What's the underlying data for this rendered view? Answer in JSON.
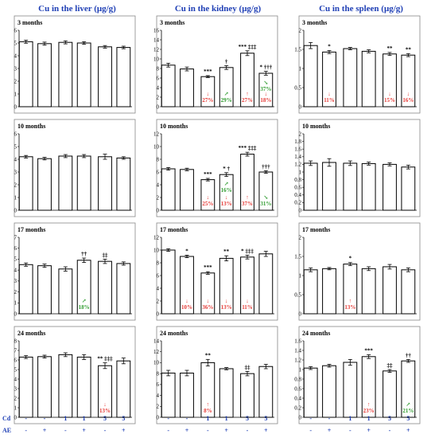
{
  "colors": {
    "title": "#1f3fb5",
    "decrease": "#e53935",
    "increase": "#2e9b2e",
    "sign_row": "#1f3fb5",
    "bar_fill": "#ffffff",
    "bar_stroke": "#000000"
  },
  "x_rows": {
    "cd_label": "Cd",
    "ae_label": "AE",
    "cd_values": [
      "-",
      "-",
      "1",
      "1",
      "5",
      "5"
    ],
    "ae_values": [
      "-",
      "+",
      "-",
      "+",
      "-",
      "+"
    ]
  },
  "columns": [
    {
      "title": "Cu in the liver (μg/g)"
    },
    {
      "title": "Cu in the kidney (μg/g)"
    },
    {
      "title": "Cu in the spleen (μg/g)"
    }
  ],
  "chart_data": [
    {
      "type": "bar",
      "organ": "liver",
      "panel_label": "3 months",
      "ylim": [
        0,
        6
      ],
      "ticks": [
        "0",
        "1",
        "2",
        "3",
        "4",
        "5",
        "6"
      ],
      "values": [
        5.1,
        4.95,
        5.05,
        5.0,
        4.7,
        4.65
      ],
      "errors": [
        0.12,
        0.12,
        0.12,
        0.1,
        0.1,
        0.1
      ],
      "sig_labels": [
        "",
        "",
        "",
        "",
        "",
        ""
      ],
      "arrows": [
        "",
        "",
        "",
        "",
        "",
        ""
      ]
    },
    {
      "type": "bar",
      "organ": "kidney",
      "panel_label": "3 months",
      "ylim": [
        0,
        16
      ],
      "ticks": [
        "0",
        "2",
        "4",
        "6",
        "8",
        "10",
        "12",
        "14",
        "16"
      ],
      "values": [
        8.7,
        7.9,
        6.3,
        8.2,
        11.2,
        7.0
      ],
      "errors": [
        0.4,
        0.4,
        0.2,
        0.4,
        0.5,
        0.4
      ],
      "sig_labels": [
        "",
        "",
        "***",
        "†",
        "*** ‡‡‡",
        "* †††"
      ],
      "arrows": [
        "",
        "",
        "↓ 27%",
        "↗ 29%",
        "↑ 27%",
        "↘ 37%|↓ 18%"
      ]
    },
    {
      "type": "bar",
      "organ": "spleen",
      "panel_label": "3 months",
      "ylim": [
        0,
        2
      ],
      "ticks": [
        "0",
        "0.5",
        "1",
        "1.5",
        "2"
      ],
      "values": [
        1.6,
        1.43,
        1.52,
        1.45,
        1.38,
        1.35
      ],
      "errors": [
        0.08,
        0.04,
        0.03,
        0.04,
        0.04,
        0.04
      ],
      "sig_labels": [
        "",
        "*",
        "",
        "",
        "**",
        "**"
      ],
      "arrows": [
        "",
        "↓ 11%",
        "",
        "",
        "↓ 15%",
        "↓ 16%"
      ]
    },
    {
      "type": "bar",
      "organ": "liver",
      "panel_label": "10 months",
      "ylim": [
        0,
        6
      ],
      "ticks": [
        "0",
        "1",
        "2",
        "3",
        "4",
        "5",
        "6"
      ],
      "values": [
        4.2,
        4.05,
        4.25,
        4.25,
        4.2,
        4.1
      ],
      "errors": [
        0.1,
        0.1,
        0.12,
        0.12,
        0.2,
        0.1
      ],
      "sig_labels": [
        "",
        "",
        "",
        "",
        "",
        ""
      ],
      "arrows": [
        "",
        "",
        "",
        "",
        "",
        ""
      ]
    },
    {
      "type": "bar",
      "organ": "kidney",
      "panel_label": "10 months",
      "ylim": [
        0,
        12
      ],
      "ticks": [
        "0",
        "2",
        "4",
        "6",
        "8",
        "10",
        "12"
      ],
      "values": [
        6.5,
        6.4,
        4.8,
        5.6,
        8.8,
        6.0
      ],
      "errors": [
        0.2,
        0.2,
        0.2,
        0.3,
        0.3,
        0.2
      ],
      "sig_labels": [
        "",
        "",
        "***",
        "* †",
        "*** ‡‡‡",
        "†††"
      ],
      "arrows": [
        "",
        "",
        "↓ 25%",
        "↗ 16%|↓ 13%",
        "↑ 37%",
        "↘ 31%"
      ]
    },
    {
      "type": "bar",
      "organ": "spleen",
      "panel_label": "10 months",
      "ylim": [
        0,
        2
      ],
      "ticks": [
        "0",
        "0.2",
        "0.4",
        "0.6",
        "0.8",
        "1",
        "1.2",
        "1.4",
        "1.6",
        "1.8",
        "2"
      ],
      "values": [
        1.23,
        1.25,
        1.23,
        1.22,
        1.2,
        1.13
      ],
      "errors": [
        0.06,
        0.1,
        0.06,
        0.04,
        0.04,
        0.05
      ],
      "sig_labels": [
        "",
        "",
        "",
        "",
        "",
        ""
      ],
      "arrows": [
        "",
        "",
        "",
        "",
        "",
        ""
      ]
    },
    {
      "type": "bar",
      "organ": "liver",
      "panel_label": "17 months",
      "ylim": [
        0,
        7
      ],
      "ticks": [
        "0",
        "1",
        "2",
        "3",
        "4",
        "5",
        "6",
        "7"
      ],
      "values": [
        4.5,
        4.4,
        4.1,
        4.9,
        4.8,
        4.6
      ],
      "errors": [
        0.15,
        0.15,
        0.2,
        0.2,
        0.2,
        0.15
      ],
      "sig_labels": [
        "",
        "",
        "",
        "††",
        "‡‡",
        ""
      ],
      "arrows": [
        "",
        "",
        "",
        "↗ 18%",
        "",
        ""
      ]
    },
    {
      "type": "bar",
      "organ": "kidney",
      "panel_label": "17 months",
      "ylim": [
        0,
        12
      ],
      "ticks": [
        "0",
        "2",
        "4",
        "6",
        "8",
        "10",
        "12"
      ],
      "values": [
        10.0,
        9.0,
        6.4,
        8.7,
        8.9,
        9.4
      ],
      "errors": [
        0.2,
        0.2,
        0.2,
        0.4,
        0.3,
        0.4
      ],
      "sig_labels": [
        "",
        "*",
        "***",
        "**",
        "* ‡‡‡",
        ""
      ],
      "arrows": [
        "",
        "↓ 10%",
        "↓ 36%",
        "↓ 13%",
        "↓ 11%",
        ""
      ]
    },
    {
      "type": "bar",
      "organ": "spleen",
      "panel_label": "17 months",
      "ylim": [
        0,
        2
      ],
      "ticks": [
        "0",
        "0.5",
        "1",
        "1.5",
        "2"
      ],
      "values": [
        1.15,
        1.18,
        1.3,
        1.18,
        1.23,
        1.15
      ],
      "errors": [
        0.05,
        0.03,
        0.04,
        0.05,
        0.06,
        0.05
      ],
      "sig_labels": [
        "",
        "",
        "*",
        "",
        "",
        ""
      ],
      "arrows": [
        "",
        "",
        "↑ 13%",
        "",
        "",
        ""
      ]
    },
    {
      "type": "bar",
      "organ": "liver",
      "panel_label": "24 months",
      "ylim": [
        0,
        8
      ],
      "ticks": [
        "0",
        "1",
        "2",
        "3",
        "4",
        "5",
        "6",
        "7",
        "8"
      ],
      "values": [
        6.3,
        6.35,
        6.55,
        6.3,
        5.4,
        5.9
      ],
      "errors": [
        0.15,
        0.15,
        0.2,
        0.25,
        0.3,
        0.3
      ],
      "sig_labels": [
        "",
        "",
        "",
        "",
        "** ‡‡‡",
        ""
      ],
      "arrows": [
        "",
        "",
        "",
        "",
        "↓ 13%",
        ""
      ]
    },
    {
      "type": "bar",
      "organ": "kidney",
      "panel_label": "24 months",
      "ylim": [
        0,
        14
      ],
      "ticks": [
        "0",
        "2",
        "4",
        "6",
        "8",
        "10",
        "12",
        "14"
      ],
      "values": [
        8.1,
        8.1,
        10.0,
        8.9,
        8.0,
        9.3
      ],
      "errors": [
        0.5,
        0.5,
        0.6,
        0.2,
        0.4,
        0.4
      ],
      "sig_labels": [
        "",
        "",
        "**",
        "",
        "‡‡",
        ""
      ],
      "arrows": [
        "",
        "",
        "↑ 8%",
        "",
        "",
        ""
      ]
    },
    {
      "type": "bar",
      "organ": "spleen",
      "panel_label": "24 months",
      "ylim": [
        0,
        1.6
      ],
      "ticks": [
        "0",
        "0.2",
        "0.4",
        "0.6",
        "0.8",
        "1",
        "1.2",
        "1.4",
        "1.6"
      ],
      "values": [
        1.03,
        1.08,
        1.15,
        1.27,
        0.97,
        1.18
      ],
      "errors": [
        0.03,
        0.03,
        0.06,
        0.04,
        0.03,
        0.03
      ],
      "sig_labels": [
        "",
        "",
        "",
        "***",
        "‡‡",
        "††"
      ],
      "arrows": [
        "",
        "",
        "",
        "↑ 23%",
        "",
        "↗ 21%"
      ]
    }
  ]
}
